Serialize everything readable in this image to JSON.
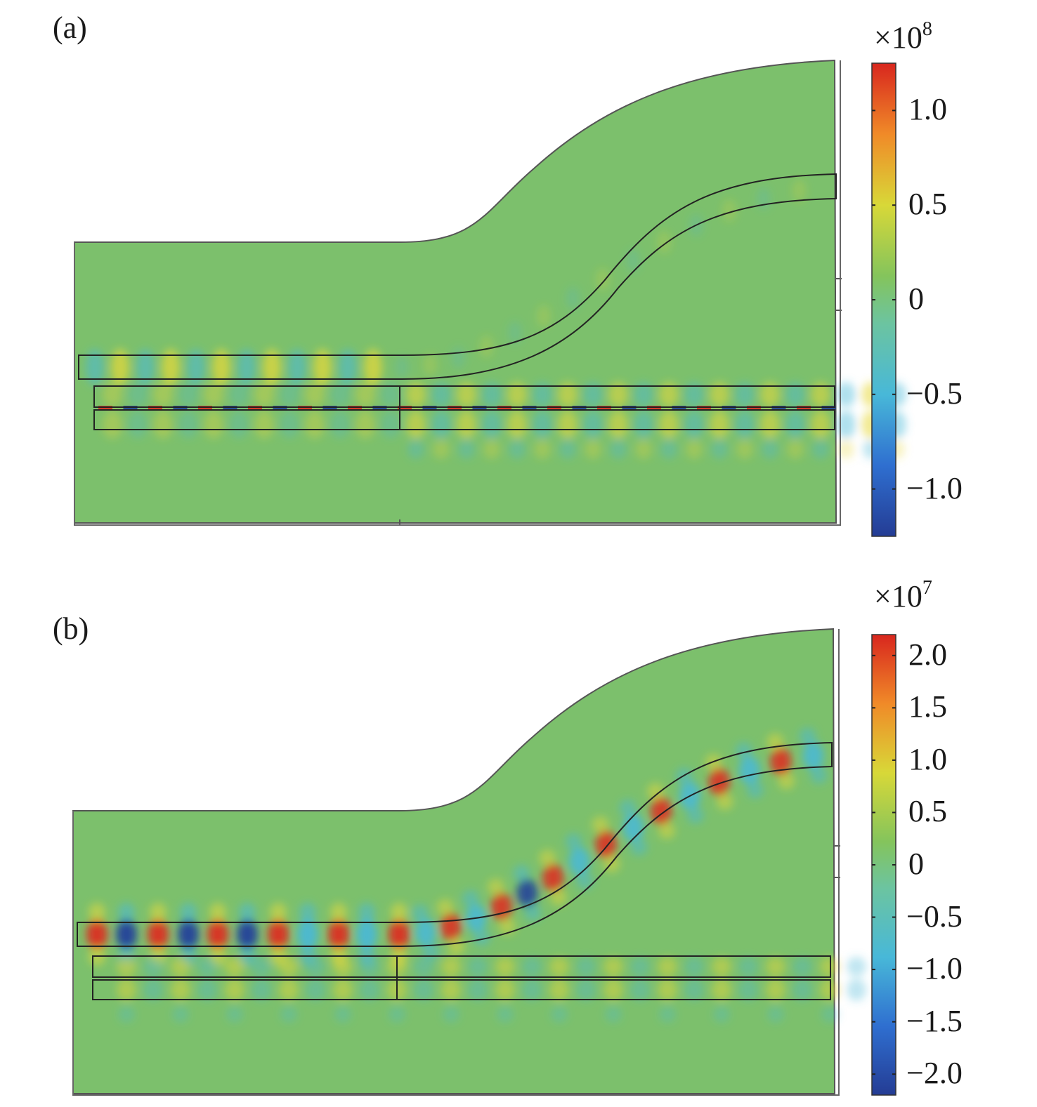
{
  "panels": [
    {
      "label": "(a)",
      "colorbar": {
        "multiplier_base": "×10",
        "multiplier_exp": "8",
        "range": [
          -1.25,
          1.25
        ],
        "tick_labels": [
          "1.0",
          "0.5",
          "0",
          "−0.5",
          "−1.0"
        ],
        "tick_values": [
          1.0,
          0.5,
          0,
          -0.5,
          -1.0
        ]
      }
    },
    {
      "label": "(b)",
      "colorbar": {
        "multiplier_base": "×10",
        "multiplier_exp": "7",
        "range": [
          -2.2,
          2.2
        ],
        "tick_labels": [
          "2.0",
          "1.5",
          "1.0",
          "0.5",
          "0",
          "−0.5",
          "−1.0",
          "−1.5",
          "−2.0"
        ],
        "tick_values": [
          2.0,
          1.5,
          1.0,
          0.5,
          0,
          -0.5,
          -1.0,
          -1.5,
          -2.0
        ]
      }
    }
  ],
  "colors": {
    "background_field": "#7cc06c",
    "high": "#e0281f",
    "positive": "#e8d838",
    "negative": "#48b8d8",
    "low": "#1f3c9c",
    "outline": "#222222"
  }
}
